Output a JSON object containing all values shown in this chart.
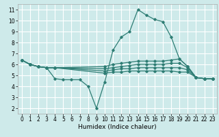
{
  "title": "",
  "xlabel": "Humidex (Indice chaleur)",
  "background_color": "#ceeaea",
  "grid_color": "#ffffff",
  "line_color": "#2e7d74",
  "xlim": [
    -0.5,
    23.5
  ],
  "ylim": [
    1.5,
    11.5
  ],
  "xticks": [
    0,
    1,
    2,
    3,
    4,
    5,
    6,
    7,
    8,
    9,
    10,
    11,
    12,
    13,
    14,
    15,
    16,
    17,
    18,
    19,
    20,
    21,
    22,
    23
  ],
  "yticks": [
    2,
    3,
    4,
    5,
    6,
    7,
    8,
    9,
    10,
    11
  ],
  "series": [
    {
      "x": [
        0,
        1,
        2,
        3,
        4,
        5,
        6,
        7,
        8,
        9,
        10,
        11,
        12,
        13,
        14,
        15,
        16,
        17,
        18,
        19,
        20,
        21,
        22,
        23
      ],
      "y": [
        6.4,
        6.0,
        5.8,
        5.7,
        4.7,
        4.6,
        4.6,
        4.6,
        4.0,
        2.0,
        4.4,
        7.3,
        8.5,
        9.0,
        11.0,
        10.5,
        10.1,
        9.9,
        8.5,
        6.5,
        5.8,
        4.8,
        4.7,
        4.7
      ]
    },
    {
      "x": [
        0,
        1,
        2,
        3,
        4,
        10,
        11,
        12,
        13,
        14,
        15,
        16,
        17,
        18,
        19,
        20,
        21,
        22,
        23
      ],
      "y": [
        6.4,
        6.0,
        5.8,
        5.7,
        5.7,
        5.8,
        6.0,
        6.1,
        6.2,
        6.3,
        6.3,
        6.3,
        6.3,
        6.4,
        6.5,
        5.8,
        4.8,
        4.7,
        4.7
      ]
    },
    {
      "x": [
        0,
        1,
        2,
        3,
        4,
        10,
        11,
        12,
        13,
        14,
        15,
        16,
        17,
        18,
        19,
        20,
        21,
        22,
        23
      ],
      "y": [
        6.4,
        6.0,
        5.8,
        5.7,
        5.7,
        5.6,
        5.7,
        5.8,
        5.9,
        6.0,
        6.0,
        6.0,
        6.0,
        6.1,
        6.1,
        5.7,
        4.8,
        4.7,
        4.7
      ]
    },
    {
      "x": [
        0,
        1,
        2,
        3,
        4,
        10,
        11,
        12,
        13,
        14,
        15,
        16,
        17,
        18,
        19,
        20,
        21,
        22,
        23
      ],
      "y": [
        6.4,
        6.0,
        5.8,
        5.7,
        5.7,
        5.4,
        5.5,
        5.6,
        5.6,
        5.7,
        5.7,
        5.7,
        5.7,
        5.7,
        5.7,
        5.5,
        4.8,
        4.7,
        4.7
      ]
    },
    {
      "x": [
        0,
        1,
        2,
        3,
        4,
        10,
        11,
        12,
        13,
        14,
        15,
        16,
        17,
        18,
        19,
        20,
        21,
        22,
        23
      ],
      "y": [
        6.4,
        6.0,
        5.8,
        5.7,
        5.7,
        5.2,
        5.3,
        5.3,
        5.4,
        5.4,
        5.4,
        5.4,
        5.4,
        5.4,
        5.3,
        5.3,
        4.8,
        4.7,
        4.7
      ]
    }
  ]
}
